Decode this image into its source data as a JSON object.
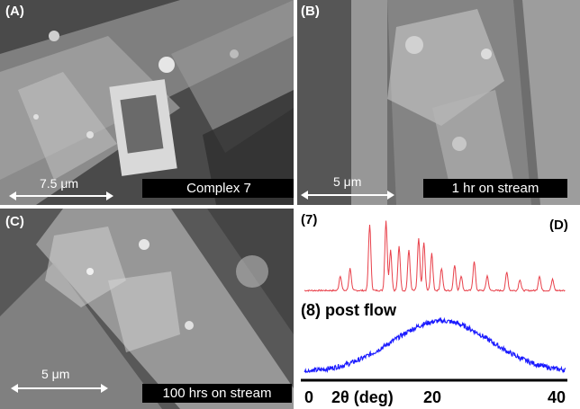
{
  "panels": {
    "a": {
      "label": "(A)",
      "caption": "Complex 7",
      "scale": "7.5 μm"
    },
    "b": {
      "label": "(B)",
      "caption": "1 hr on stream",
      "scale": "5 μm"
    },
    "c": {
      "label": "(C)",
      "caption": "100 hrs on stream",
      "scale": "5 μm"
    },
    "d": {
      "label": "(D)",
      "trace_top_label": "(7)",
      "trace_bottom_label": "(8) post flow"
    }
  },
  "chart_data": {
    "type": "line",
    "x_tick_labels": [
      "0",
      "2θ (deg)",
      "20",
      "40"
    ],
    "xlim": [
      0,
      40
    ],
    "series": [
      {
        "label": "(7)",
        "color": "#e8404a"
      },
      {
        "label": "(8) post flow",
        "color": "#1a1aff"
      }
    ]
  }
}
